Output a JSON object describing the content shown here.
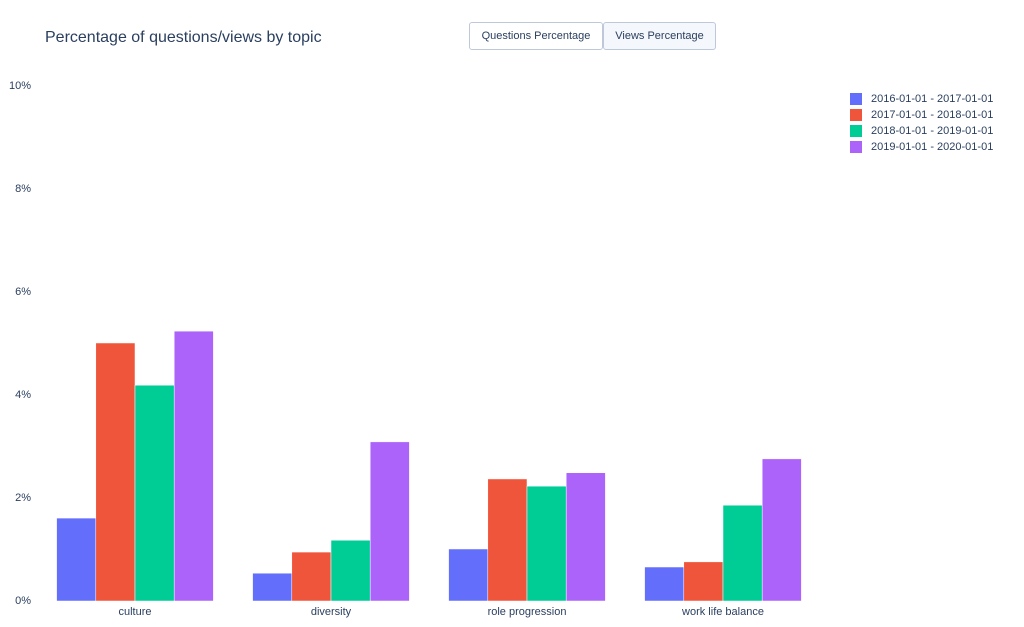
{
  "chart_data": {
    "type": "bar",
    "title": "Percentage of questions/views by topic",
    "buttons": [
      "Questions Percentage",
      "Views Percentage"
    ],
    "categories": [
      "culture",
      "diversity",
      "role progression",
      "work life balance"
    ],
    "series": [
      {
        "name": "2016-01-01 - 2017-01-01",
        "color": "#636efa",
        "values": [
          1.61,
          0.54,
          1.01,
          0.66
        ]
      },
      {
        "name": "2017-01-01 - 2018-01-01",
        "color": "#ef553b",
        "values": [
          5.01,
          0.95,
          2.37,
          0.76
        ]
      },
      {
        "name": "2018-01-01 - 2019-01-01",
        "color": "#00cc96",
        "values": [
          4.19,
          1.18,
          2.23,
          1.86
        ]
      },
      {
        "name": "2019-01-01 - 2020-01-01",
        "color": "#ab63fa",
        "values": [
          5.24,
          3.09,
          2.49,
          2.76
        ]
      }
    ],
    "ylim": [
      0,
      10
    ],
    "yticks": [
      {
        "value": 0,
        "label": "0%"
      },
      {
        "value": 2,
        "label": "2%"
      },
      {
        "value": 4,
        "label": "4%"
      },
      {
        "value": 6,
        "label": "6%"
      },
      {
        "value": 8,
        "label": "8%"
      },
      {
        "value": 10,
        "label": "10%"
      }
    ],
    "grid": false
  }
}
